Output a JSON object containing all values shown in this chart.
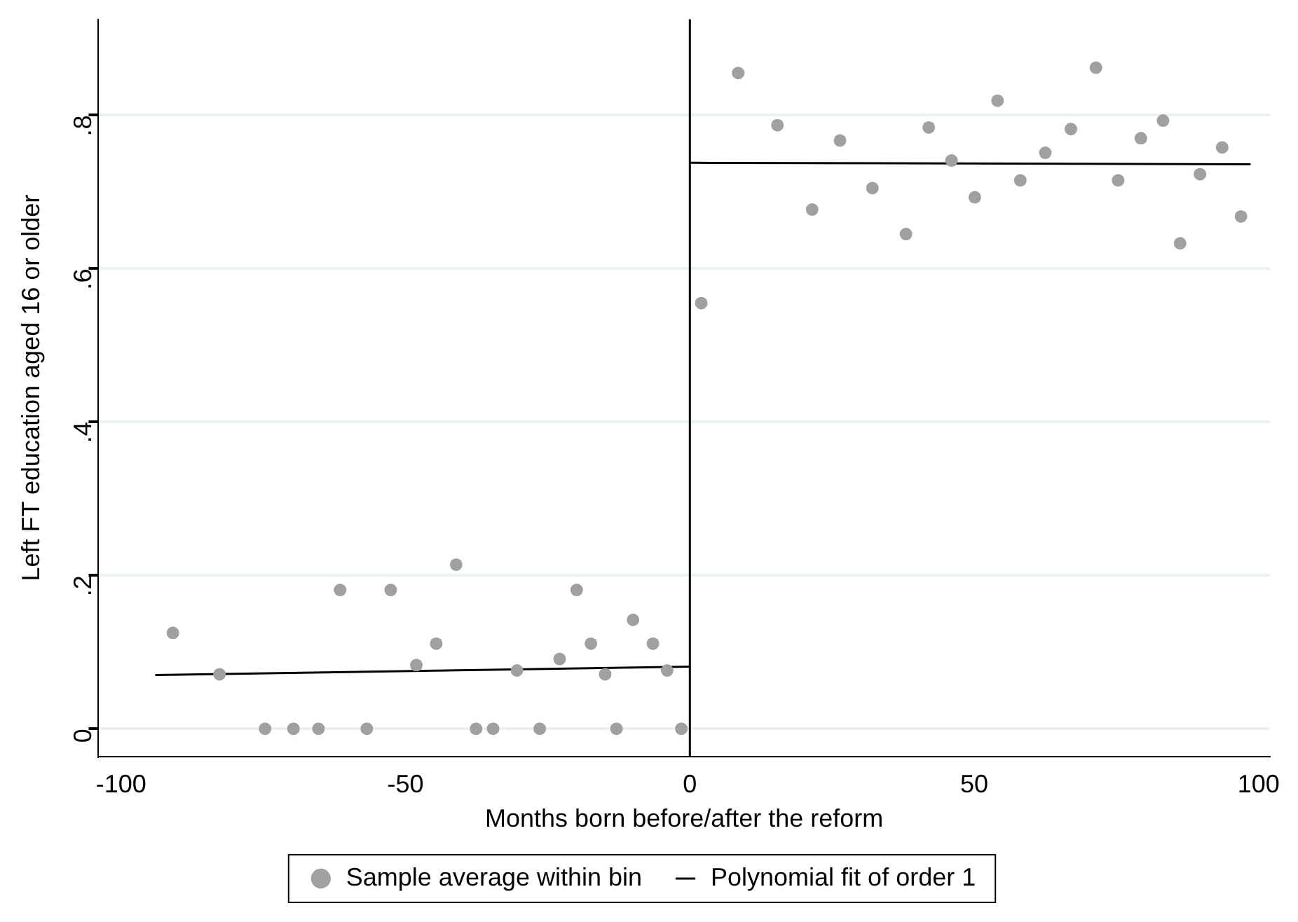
{
  "chart_data": {
    "type": "scatter",
    "xlabel": "Months born before/after the reform",
    "ylabel": "Left FT education aged 16 or older",
    "xlim": [
      -104,
      102
    ],
    "xticks": [
      -100,
      -50,
      0,
      50,
      100
    ],
    "ylim": [
      -0.036,
      0.925
    ],
    "yticks": [
      {
        "value": 0,
        "label": "0"
      },
      {
        "value": 0.2,
        "label": ".2"
      },
      {
        "value": 0.4,
        "label": ".4"
      },
      {
        "value": 0.6,
        "label": ".6"
      },
      {
        "value": 0.8,
        "label": ".8"
      }
    ],
    "grid": "y",
    "legend": "bottom",
    "marker": "circle",
    "ref_lines": [
      {
        "axis": "x",
        "value": 0,
        "color": "#000000"
      }
    ],
    "series": [
      {
        "name": "Sample average within bin",
        "color": "#a0a0a0",
        "x": [
          -90.9,
          -82.7,
          -74.7,
          -69.7,
          -65.3,
          -61.5,
          -56.8,
          -52.6,
          -48.1,
          -44.6,
          -41.1,
          -37.6,
          -34.6,
          -30.4,
          -26.4,
          -22.9,
          -19.9,
          -17.4,
          -14.9,
          -12.9,
          -10.0,
          -6.5,
          -4.0,
          -1.5,
          2.0,
          8.5,
          15.4,
          21.5,
          26.4,
          32.1,
          38.0,
          42.0,
          46.0,
          50.1,
          54.1,
          58.1,
          62.5,
          67.0,
          71.4,
          75.3,
          79.3,
          83.2,
          86.2,
          89.7,
          93.6,
          96.9
        ],
        "values": [
          0.125,
          0.071,
          0,
          0,
          0,
          0.181,
          0,
          0.181,
          0.083,
          0.111,
          0.214,
          0,
          0,
          0.076,
          0,
          0.091,
          0.181,
          0.111,
          0.071,
          0,
          0.142,
          0.111,
          0.076,
          0,
          0.555,
          0.855,
          0.787,
          0.677,
          0.767,
          0.705,
          0.645,
          0.784,
          0.741,
          0.693,
          0.819,
          0.715,
          0.751,
          0.782,
          0.862,
          0.715,
          0.77,
          0.793,
          0.633,
          0.723,
          0.758,
          0.668
        ]
      },
      {
        "name": "Polynomial fit of order 1",
        "type": "line",
        "color": "#000000",
        "marker": "none",
        "x": [
          -94,
          0
        ],
        "values": [
          0.07,
          0.081
        ]
      },
      {
        "type": "line",
        "color": "#000000",
        "marker": "none",
        "x": [
          0,
          98.6
        ],
        "values": [
          0.738,
          0.736
        ]
      }
    ]
  }
}
